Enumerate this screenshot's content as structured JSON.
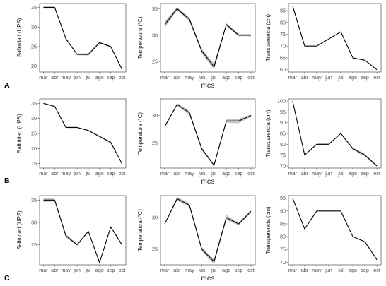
{
  "panels_rows": [
    "A",
    "B",
    "C"
  ],
  "xlabel": "mes",
  "chart_data": [
    {
      "type": "line",
      "row": "A",
      "col": 0,
      "ylabel": "Salinidad (UPS)",
      "categories": [
        "mar",
        "abr",
        "may",
        "jun",
        "jul",
        "ago",
        "sep",
        "oct"
      ],
      "values": [
        35,
        35,
        27,
        23,
        23,
        26,
        25,
        19.2
      ],
      "band": [
        0.3,
        0.3,
        0.3,
        0.2,
        0.3,
        0.2,
        0.2,
        0.2
      ],
      "ylim": [
        18.5,
        36
      ],
      "yticks": [
        20,
        25,
        30,
        35
      ]
    },
    {
      "type": "line",
      "row": "A",
      "col": 1,
      "ylabel": "Temperatura (°C)",
      "categories": [
        "mar",
        "abr",
        "may",
        "jun",
        "jul",
        "ago",
        "sep",
        "oct"
      ],
      "values": [
        32,
        35,
        33,
        27,
        24,
        32,
        30,
        30
      ],
      "band": [
        0.6,
        0.3,
        0.4,
        0.4,
        0.6,
        0.3,
        0.2,
        0.2
      ],
      "ylim": [
        23,
        36
      ],
      "yticks": [
        25,
        30,
        35
      ]
    },
    {
      "type": "line",
      "row": "A",
      "col": 2,
      "ylabel": "Transparencia (cm)",
      "categories": [
        "mar",
        "abr",
        "may",
        "jun",
        "jul",
        "ago",
        "sep",
        "oct"
      ],
      "values": [
        87,
        70,
        70,
        73,
        76,
        65,
        64,
        60
      ],
      "band": [
        0,
        0,
        0,
        0,
        0,
        0,
        0,
        0
      ],
      "ylim": [
        59,
        88
      ],
      "yticks": [
        60,
        65,
        70,
        75,
        80,
        85
      ]
    },
    {
      "type": "line",
      "row": "B",
      "col": 0,
      "ylabel": "Salinidad (UPS)",
      "categories": [
        "mar",
        "abr",
        "may",
        "jun",
        "jul",
        "ago",
        "sep",
        "oct"
      ],
      "values": [
        35,
        34,
        27,
        27,
        26,
        24,
        22,
        15
      ],
      "band": [
        0.2,
        0.2,
        0.2,
        0.2,
        0.2,
        0.2,
        0.3,
        0.2
      ],
      "ylim": [
        13.5,
        36.5
      ],
      "yticks": [
        15,
        20,
        25,
        30,
        35
      ]
    },
    {
      "type": "line",
      "row": "B",
      "col": 1,
      "ylabel": "Temperatura (°C)",
      "categories": [
        "mar",
        "abr",
        "may",
        "jun",
        "jul",
        "ago",
        "sep",
        "oct"
      ],
      "values": [
        28,
        32,
        30.5,
        24,
        21,
        29,
        29,
        30
      ],
      "band": [
        0,
        0.2,
        0.4,
        0.3,
        0.2,
        0.3,
        0.4,
        0.2
      ],
      "ylim": [
        20.5,
        33
      ],
      "yticks": [
        25,
        30
      ]
    },
    {
      "type": "line",
      "row": "B",
      "col": 2,
      "ylabel": "Transparencia (cm)",
      "categories": [
        "mar",
        "abr",
        "may",
        "jun",
        "jul",
        "ago",
        "sep",
        "oct"
      ],
      "values": [
        100,
        75,
        80,
        80,
        85,
        78,
        75,
        70
      ],
      "band": [
        0,
        0,
        0.3,
        0.3,
        0.2,
        0.6,
        0.6,
        0.4
      ],
      "ylim": [
        69,
        101
      ],
      "yticks": [
        70,
        75,
        80,
        85,
        90,
        95,
        100
      ]
    },
    {
      "type": "line",
      "row": "C",
      "col": 0,
      "ylabel": "Salinidad (UPS)",
      "categories": [
        "mar",
        "abr",
        "may",
        "jun",
        "jul",
        "ago",
        "sep",
        "oct"
      ],
      "values": [
        35,
        35,
        27,
        25,
        28,
        21,
        29,
        25
      ],
      "band": [
        0.4,
        0.3,
        0.4,
        0.2,
        0.2,
        0.2,
        0.2,
        0.2
      ],
      "ylim": [
        20.5,
        36
      ],
      "yticks": [
        25,
        30,
        35
      ]
    },
    {
      "type": "line",
      "row": "C",
      "col": 1,
      "ylabel": "Temperatura (°C)",
      "categories": [
        "mar",
        "abr",
        "may",
        "jun",
        "jul",
        "ago",
        "sep",
        "oct"
      ],
      "values": [
        29,
        33,
        32,
        25,
        23,
        30,
        29,
        31
      ],
      "band": [
        0,
        0.3,
        0.3,
        0.3,
        0.4,
        0.4,
        0.2,
        0.2
      ],
      "ylim": [
        22.5,
        33.5
      ],
      "yticks": [
        25,
        30
      ]
    },
    {
      "type": "line",
      "row": "C",
      "col": 2,
      "ylabel": "Transparencia (cm)",
      "categories": [
        "mar",
        "abr",
        "may",
        "jun",
        "jul",
        "ago",
        "sep",
        "oct"
      ],
      "values": [
        95,
        83,
        90,
        90,
        90,
        80,
        78,
        71
      ],
      "band": [
        0,
        0,
        0,
        0,
        0,
        0,
        0,
        0.3
      ],
      "ylim": [
        69,
        96
      ],
      "yticks": [
        70,
        75,
        80,
        85,
        90,
        95
      ]
    }
  ]
}
